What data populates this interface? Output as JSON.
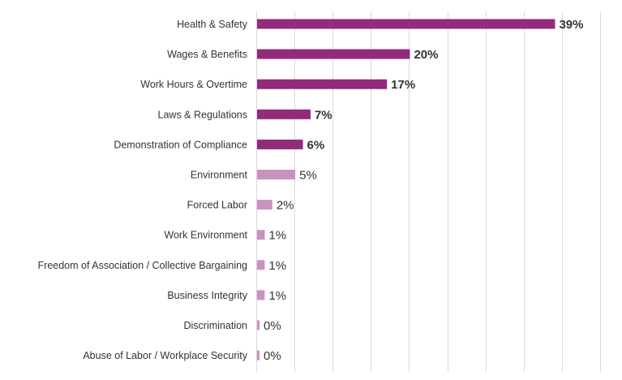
{
  "chart_data": {
    "type": "bar",
    "orientation": "horizontal",
    "title": "",
    "xlabel": "",
    "ylabel": "",
    "xlim": [
      0,
      45
    ],
    "grid": "vertical",
    "legend": "none",
    "categories": [
      "Health & Safety",
      "Wages & Benefits",
      "Work Hours & Overtime",
      "Laws & Regulations",
      "Demonstration of Compliance",
      "Environment",
      "Forced Labor",
      "Work Environment",
      "Freedom of Association / Collective Bargaining",
      "Business Integrity",
      "Discrimination",
      "Abuse of Labor / Workplace Security"
    ],
    "values": [
      39,
      20,
      17,
      7,
      6,
      5,
      2,
      1,
      1,
      1,
      0,
      0
    ],
    "labels": [
      "39%",
      "20%",
      "17%",
      "7%",
      "6%",
      "5%",
      "2%",
      "1%",
      "1%",
      "1%",
      "0%",
      "0%"
    ],
    "highlighted": [
      true,
      true,
      true,
      true,
      true,
      false,
      false,
      false,
      false,
      false,
      false,
      false
    ],
    "colors": {
      "highlight": "#922B7B",
      "normal": "#C894BF"
    }
  }
}
